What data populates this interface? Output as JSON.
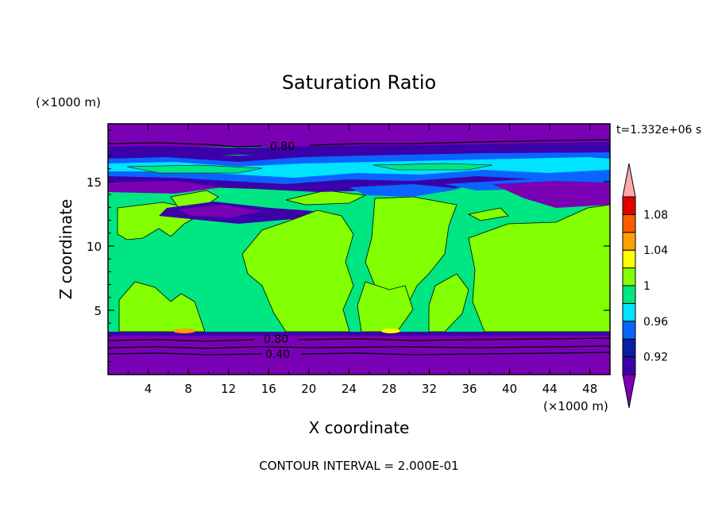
{
  "chart_data": {
    "type": "heatmap",
    "title": "Saturation Ratio",
    "xlabel": "X coordinate",
    "ylabel": "Z coordinate",
    "x_unit": "(×1000 m)",
    "y_unit": "(×1000 m)",
    "time_label": "t=1.332e+06 s",
    "contour_interval_label": "CONTOUR INTERVAL = 2.000E-01",
    "xlim": [
      0,
      50
    ],
    "ylim": [
      0,
      19.5
    ],
    "x_ticks": [
      4,
      8,
      12,
      16,
      20,
      24,
      28,
      32,
      36,
      40,
      44,
      48
    ],
    "y_ticks": [
      5,
      10,
      15
    ],
    "contour_labels": [
      {
        "text": "0.80",
        "x": 17.5,
        "z": 18.1
      },
      {
        "text": "0.80",
        "x": 17,
        "z": 3.1
      },
      {
        "text": "0.40",
        "x": 17,
        "z": 1.8
      }
    ],
    "colorbar": {
      "levels": [
        0.92,
        0.94,
        0.96,
        0.98,
        1.0,
        1.02,
        1.04,
        1.06,
        1.08,
        1.1
      ],
      "tick_labels": [
        "0.92",
        "0.96",
        "1",
        "1.04",
        "1.08"
      ],
      "colors": [
        "#7a00b4",
        "#3c00aa",
        "#0a1ea0",
        "#0a64ff",
        "#00e4ff",
        "#00e682",
        "#82ff00",
        "#ffff00",
        "#ffa000",
        "#ff5a00",
        "#e10000",
        "#ffaaaa"
      ]
    },
    "bands": [
      {
        "z": [
          0,
          3.3
        ],
        "value": "< 0.92",
        "color": "#7a00b4"
      },
      {
        "z": [
          3.3,
          13.5
        ],
        "value": "0.98-1.02",
        "color": "#00e682"
      },
      {
        "z": [
          18.2,
          19.5
        ],
        "value": "< 0.92",
        "color": "#7a00b4"
      }
    ]
  }
}
